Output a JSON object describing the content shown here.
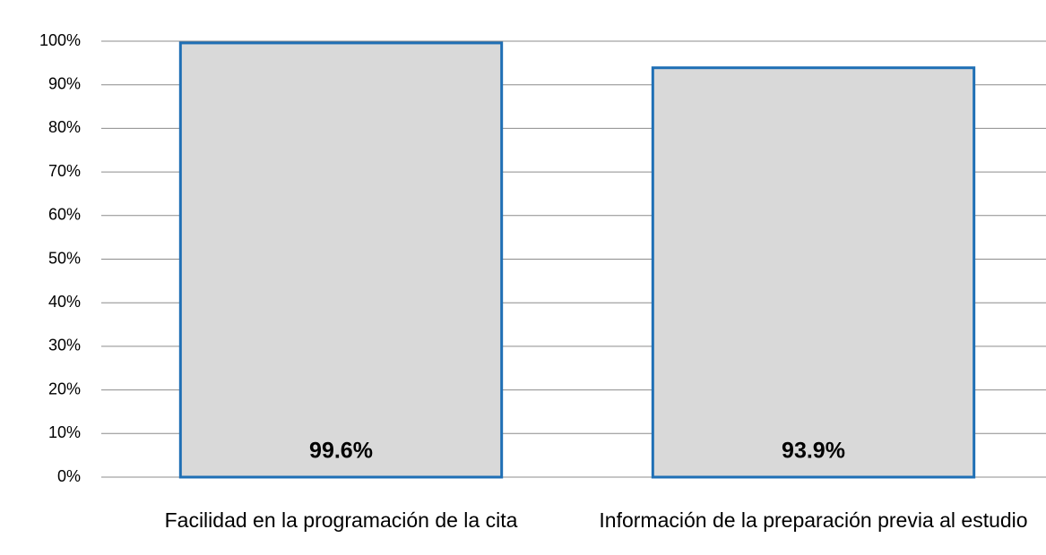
{
  "chart_data": {
    "type": "bar",
    "categories": [
      "Facilidad en la programación de la cita",
      "Información de la preparación previa al estudio"
    ],
    "values": [
      99.6,
      93.9
    ],
    "value_labels": [
      "99.6%",
      "93.9%"
    ],
    "color": "#d9d9d9",
    "edge_color": "#1f6fb5",
    "ylim": [
      0,
      100
    ],
    "yticks": [
      {
        "value": 0,
        "label": "0%"
      },
      {
        "value": 10,
        "label": "10%"
      },
      {
        "value": 20,
        "label": "20%"
      },
      {
        "value": 30,
        "label": "30%"
      },
      {
        "value": 40,
        "label": "40%"
      },
      {
        "value": 50,
        "label": "50%"
      },
      {
        "value": 60,
        "label": "60%"
      },
      {
        "value": 70,
        "label": "70%"
      },
      {
        "value": 80,
        "label": "80%"
      },
      {
        "value": 90,
        "label": "90%"
      },
      {
        "value": 100,
        "label": "100%"
      }
    ],
    "grid": true
  }
}
